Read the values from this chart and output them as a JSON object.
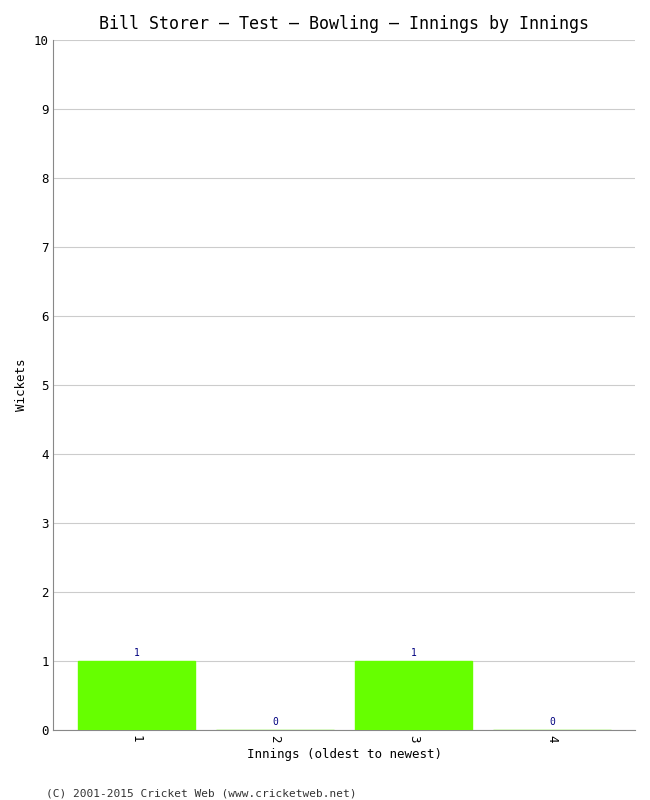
{
  "title": "Bill Storer – Test – Bowling – Innings by Innings",
  "xlabel": "Innings (oldest to newest)",
  "ylabel": "Wickets",
  "categories": [
    "1",
    "2",
    "3",
    "4"
  ],
  "values": [
    1,
    0,
    1,
    0
  ],
  "bar_color": "#66ff00",
  "label_color": "#000080",
  "ylim": [
    0,
    10
  ],
  "yticks": [
    0,
    1,
    2,
    3,
    4,
    5,
    6,
    7,
    8,
    9,
    10
  ],
  "background_color": "#ffffff",
  "grid_color": "#cccccc",
  "footer": "(C) 2001-2015 Cricket Web (www.cricketweb.net)",
  "title_fontsize": 12,
  "axis_label_fontsize": 9,
  "tick_fontsize": 9,
  "footer_fontsize": 8,
  "bar_label_fontsize": 7,
  "bar_width": 0.85
}
